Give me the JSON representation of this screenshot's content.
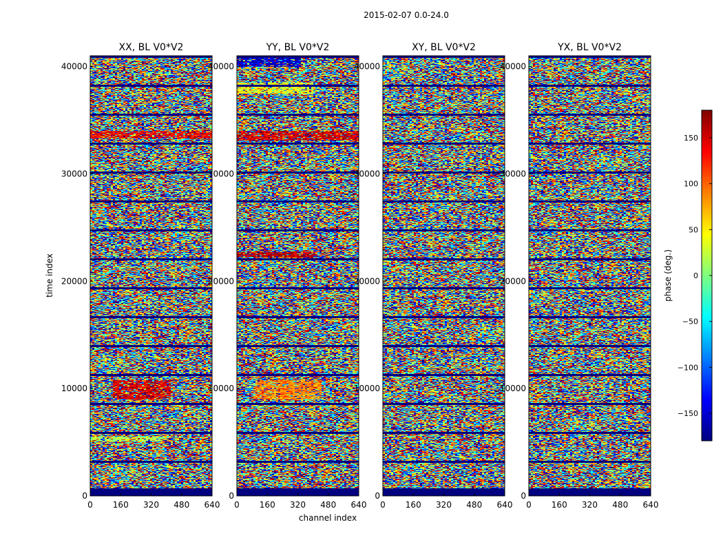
{
  "chart_data": {
    "type": "heatmap",
    "suptitle": "2015-02-07 0.0-24.0",
    "xlabel": "channel index",
    "ylabel": "time index",
    "xlim": [
      0,
      640
    ],
    "ylim": [
      0,
      41000
    ],
    "xticks": [
      "0",
      "160",
      "320",
      "480",
      "640"
    ],
    "yticks": [
      "0",
      "10000",
      "20000",
      "30000",
      "40000"
    ],
    "panels": [
      {
        "title": "XX, BL V0*V2",
        "features": [
          {
            "t": [
              9000,
              10800
            ],
            "ch": [
              120,
              420
            ],
            "phase": 150
          },
          {
            "t": [
              5100,
              5500
            ],
            "ch": [
              0,
              380
            ],
            "phase": 20
          },
          {
            "t": [
              33300,
              34000
            ],
            "ch": [
              0,
              640
            ],
            "phase": 140
          }
        ]
      },
      {
        "title": "YY, BL V0*V2",
        "features": [
          {
            "t": [
              9000,
              10800
            ],
            "ch": [
              100,
              440
            ],
            "phase": 90
          },
          {
            "t": [
              22200,
              22700
            ],
            "ch": [
              0,
              400
            ],
            "phase": 160
          },
          {
            "t": [
              33100,
              34000
            ],
            "ch": [
              0,
              640
            ],
            "phase": 150
          },
          {
            "t": [
              37500,
              38500
            ],
            "ch": [
              0,
              400
            ],
            "phase": 40
          },
          {
            "t": [
              40000,
              40800
            ],
            "ch": [
              0,
              340
            ],
            "phase": -150
          }
        ]
      },
      {
        "title": "XY, BL V0*V2",
        "features": []
      },
      {
        "title": "YX, BL V0*V2",
        "features": []
      }
    ],
    "colorbar": {
      "label": "phase (deg.)",
      "range": [
        -180,
        180
      ],
      "ticks": [
        "150",
        "100",
        "50",
        "0",
        "−50",
        "−100",
        "−150"
      ],
      "colormap": "jet"
    },
    "grid": false
  }
}
